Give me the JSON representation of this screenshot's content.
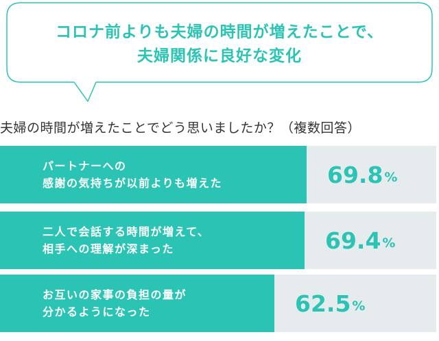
{
  "header": {
    "line1": "コロナ前よりも夫婦の時間が増えたことで、",
    "line2": "夫婦関係に良好な変化"
  },
  "chart_data": {
    "type": "bar",
    "title": "夫婦の時間が増えたことでどう思いましたか？（複数回答）",
    "categories": [
      [
        "パートナーへの",
        "感謝の気持ちが以前よりも増えた"
      ],
      [
        "二人で会話する時間が増えて、",
        "相手への理解が深まった"
      ],
      [
        "お互いの家事の負担の量が",
        "分かるようになった"
      ]
    ],
    "values": [
      69.8,
      69.4,
      62.5
    ],
    "unit": "%",
    "xlim": [
      0,
      100
    ]
  },
  "colors": {
    "accent": "#2bc4b4",
    "track": "#e6ebee",
    "text": "#333333"
  }
}
